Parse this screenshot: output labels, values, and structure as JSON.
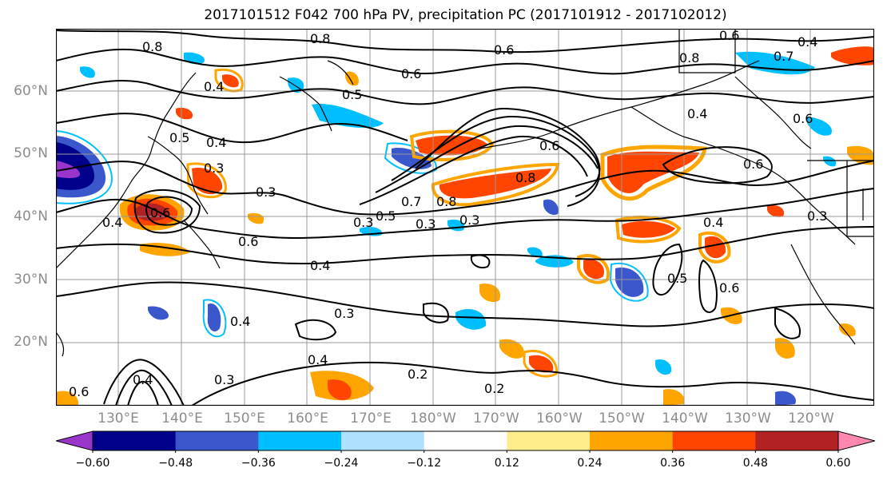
{
  "title": "2017101512 F042 700 hPa PV, precipitation PC (2017101912 - 2017102012)",
  "lat_labels": [
    "60°N",
    "50°N",
    "40°N",
    "30°N",
    "20°N"
  ],
  "lon_labels": [
    "130°E",
    "140°E",
    "150°E",
    "160°E",
    "170°E",
    "180°W",
    "170°W",
    "160°W",
    "150°W",
    "140°W",
    "130°W",
    "120°W"
  ],
  "colorbar": {
    "colors": [
      "#9a35cc",
      "#00008b",
      "#3a57cc",
      "#00bfff",
      "#b0e2ff",
      "#ffffff",
      "#ffec8b",
      "#ffa500",
      "#ff4500",
      "#b22222",
      "#ff87b0"
    ],
    "tick_labels": [
      "−0.60",
      "−0.48",
      "−0.36",
      "−0.24",
      "−0.12",
      "0.12",
      "0.24",
      "0.36",
      "0.48",
      "0.60"
    ]
  },
  "contour_labels": [
    "0.8",
    "0.8",
    "0.6",
    "0.6",
    "0.8",
    "0.7",
    "0.4",
    "0.5",
    "0.6",
    "0.4",
    "0.6",
    "0.5",
    "0.4",
    "0.3",
    "0.3",
    "0.6",
    "0.4",
    "0.6",
    "0.5",
    "0.7",
    "0.8",
    "0.6",
    "0.8",
    "0.6",
    "0.3",
    "0.3",
    "0.4",
    "0.4",
    "0.3",
    "0.4",
    "0.3",
    "0.4",
    "0.3",
    "0.2",
    "0.2",
    "0.5",
    "0.6",
    "0.4",
    "0.6",
    "0.3",
    "0.4"
  ],
  "colors": {
    "lat_lon_label": "#8c8c8c",
    "contour": "#000000",
    "coast": "#000000",
    "grid": "#999999"
  }
}
